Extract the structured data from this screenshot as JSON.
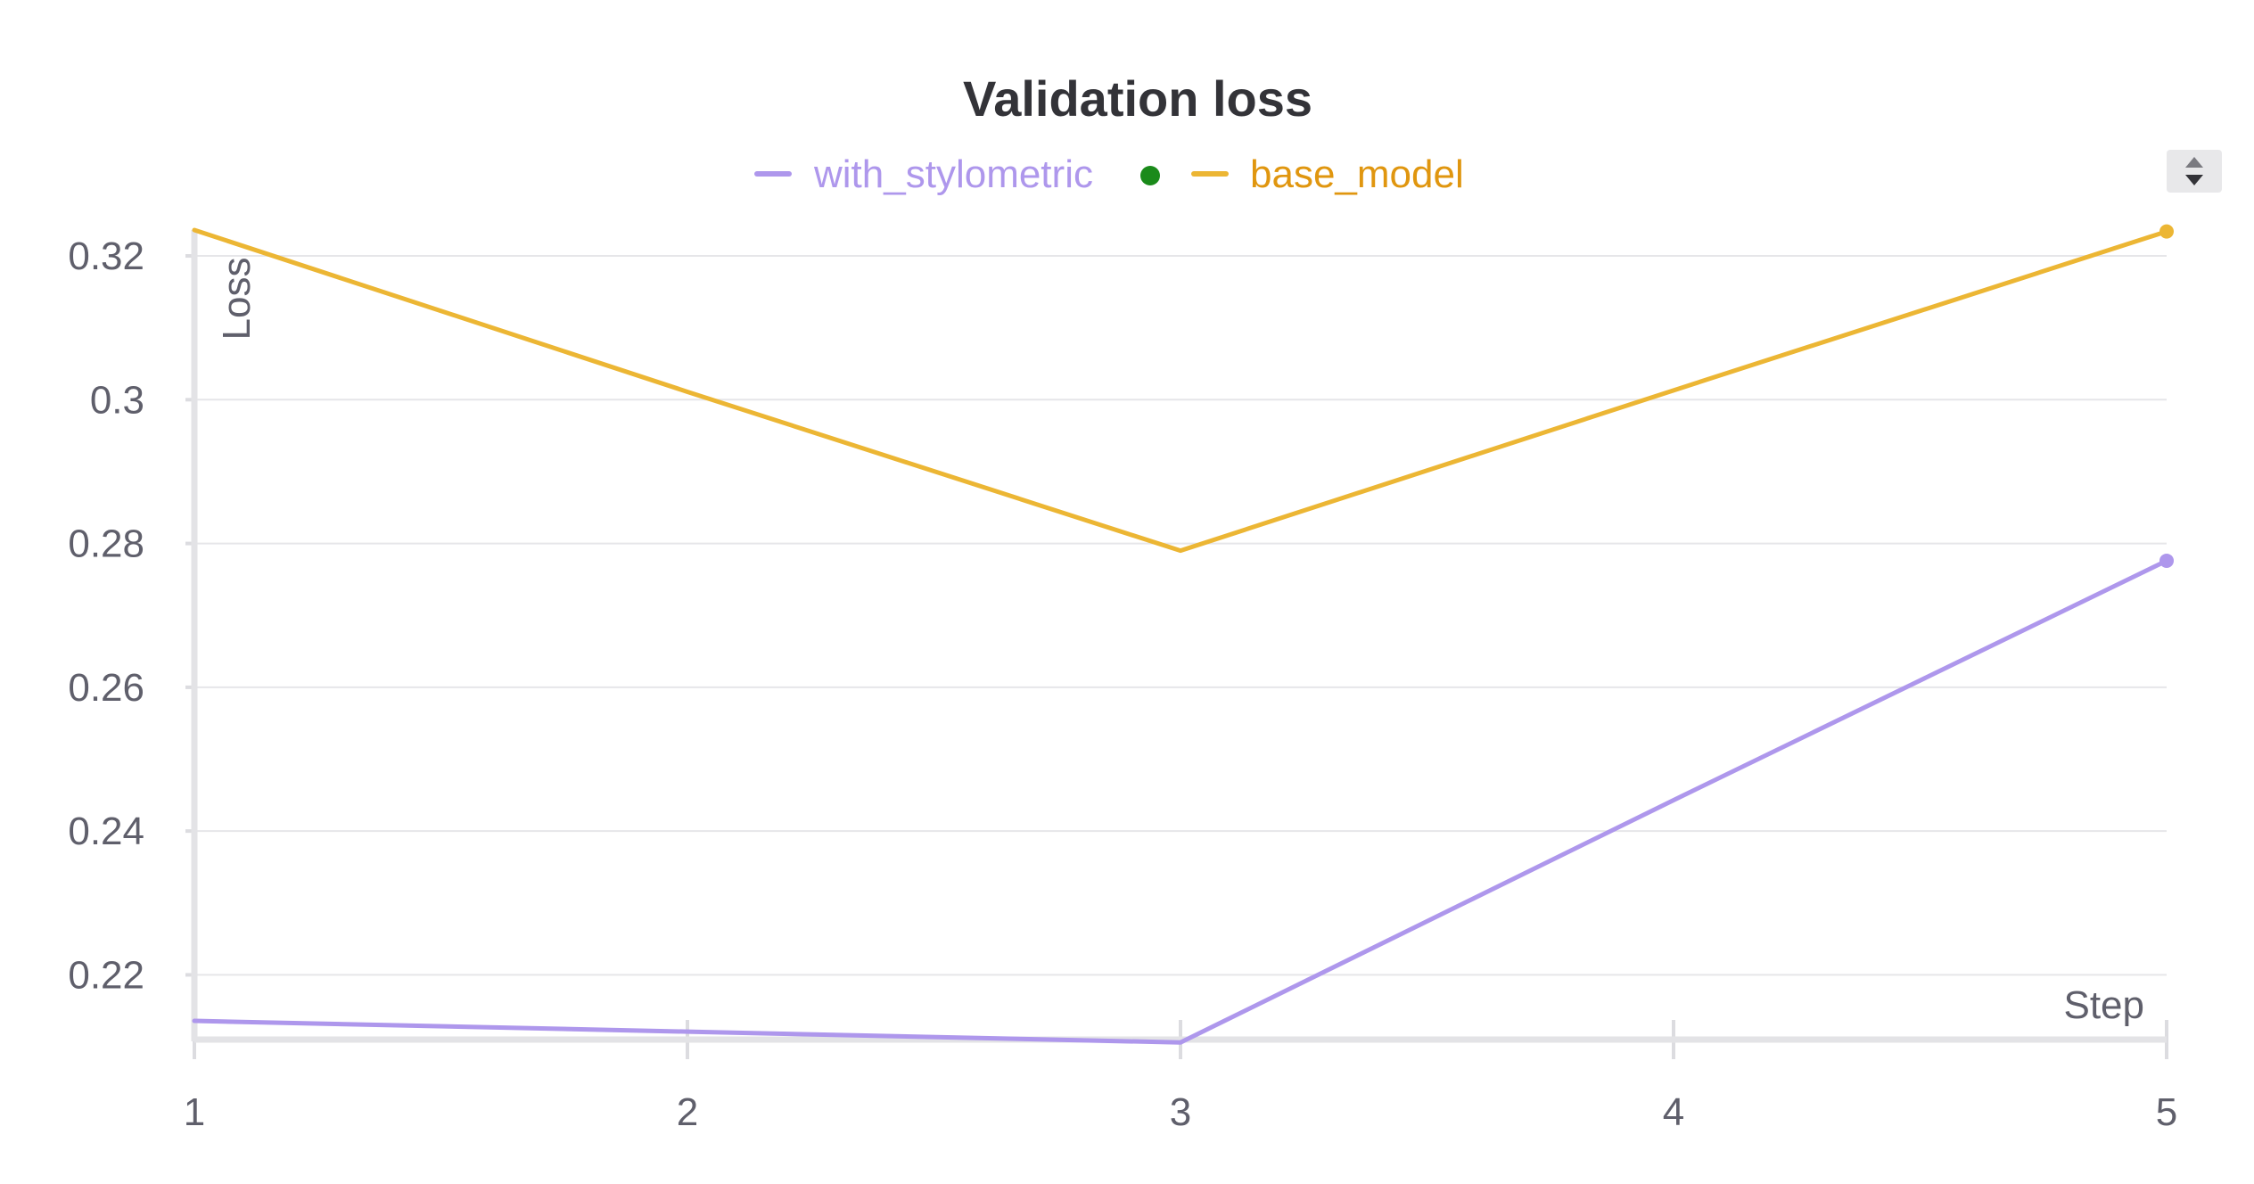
{
  "chart_data": {
    "type": "line",
    "title": "Validation loss",
    "xlabel": "Step",
    "ylabel": "Loss",
    "x": [
      1,
      2,
      3,
      4,
      5
    ],
    "xlim": [
      1,
      5
    ],
    "ylim": [
      0.211,
      0.3236
    ],
    "x_ticks": [
      "1",
      "2",
      "3",
      "4",
      "5"
    ],
    "y_ticks": [
      {
        "value": 0.32,
        "label": "0.32"
      },
      {
        "value": 0.3,
        "label": "0.3"
      },
      {
        "value": 0.28,
        "label": "0.28"
      },
      {
        "value": 0.26,
        "label": "0.26"
      },
      {
        "value": 0.24,
        "label": "0.24"
      },
      {
        "value": 0.22,
        "label": "0.22"
      }
    ],
    "grid": true,
    "legend_position": "top-center",
    "series": [
      {
        "name": "with_stylometric",
        "color": "#ae97ec",
        "values": [
          0.2136,
          0.2121,
          0.2106,
          0.2443,
          0.2776
        ],
        "status_dot_color": "#1a8a1a"
      },
      {
        "name": "base_model",
        "color": "#ecb634",
        "label_color": "#e0960f",
        "values": [
          0.3236,
          0.3011,
          0.279,
          0.3013,
          0.3234
        ]
      }
    ]
  },
  "controls": {
    "sort_icon": "sort-up-down-icon"
  }
}
